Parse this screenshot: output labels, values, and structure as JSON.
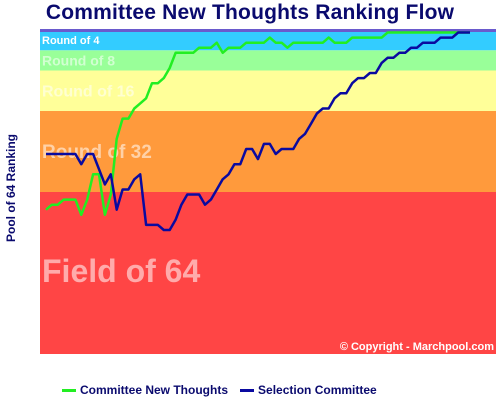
{
  "chart_data": {
    "type": "line",
    "title": "Committee New Thoughts Ranking Flow",
    "ylabel": "Pool of 64 Ranking",
    "ylim": [
      64,
      1
    ],
    "bands": [
      {
        "label": "Field of 64",
        "from": 33,
        "to": 64,
        "color": "#ff4545"
      },
      {
        "label": "Round of 32",
        "from": 17,
        "to": 32,
        "color": "#ff9a3c"
      },
      {
        "label": "Round of 16",
        "from": 9,
        "to": 16,
        "color": "#ffff99"
      },
      {
        "label": "Round of 8",
        "from": 5,
        "to": 8,
        "color": "#99ff99"
      },
      {
        "label": "Round of 4",
        "from": 1,
        "to": 4,
        "color": "#33ccff"
      }
    ],
    "copyright": "© Copyright - Marchpool.com",
    "series": [
      {
        "name": "Committee New Thoughts",
        "color": "#22ee22",
        "values": [
          36,
          35,
          35,
          34,
          34,
          34,
          37,
          34,
          29,
          29,
          37,
          33,
          22,
          18,
          18,
          16,
          15,
          14,
          11,
          11,
          10,
          8,
          5,
          5,
          5,
          5,
          4,
          4,
          4,
          3,
          5,
          4,
          4,
          4,
          3,
          3,
          3,
          3,
          2,
          3,
          3,
          4,
          3,
          3,
          3,
          3,
          3,
          3,
          2,
          3,
          3,
          3,
          2,
          2,
          2,
          2,
          2,
          2,
          1,
          1,
          1,
          1,
          1,
          1,
          1,
          1,
          1,
          1,
          1,
          1,
          1,
          1,
          1
        ]
      },
      {
        "name": "Selection Committee",
        "color": "#0a0aa0",
        "values": [
          25,
          25,
          25,
          25,
          25,
          25,
          27,
          25,
          25,
          28,
          31,
          29,
          36,
          32,
          32,
          30,
          29,
          39,
          39,
          39,
          40,
          40,
          38,
          35,
          33,
          33,
          33,
          35,
          34,
          32,
          30,
          29,
          27,
          27,
          24,
          24,
          26,
          23,
          23,
          25,
          24,
          24,
          24,
          22,
          21,
          19,
          17,
          16,
          16,
          14,
          13,
          13,
          11,
          10,
          10,
          9,
          9,
          7,
          6,
          6,
          5,
          5,
          4,
          4,
          3,
          3,
          3,
          2,
          2,
          2,
          1,
          1,
          1
        ]
      }
    ]
  }
}
